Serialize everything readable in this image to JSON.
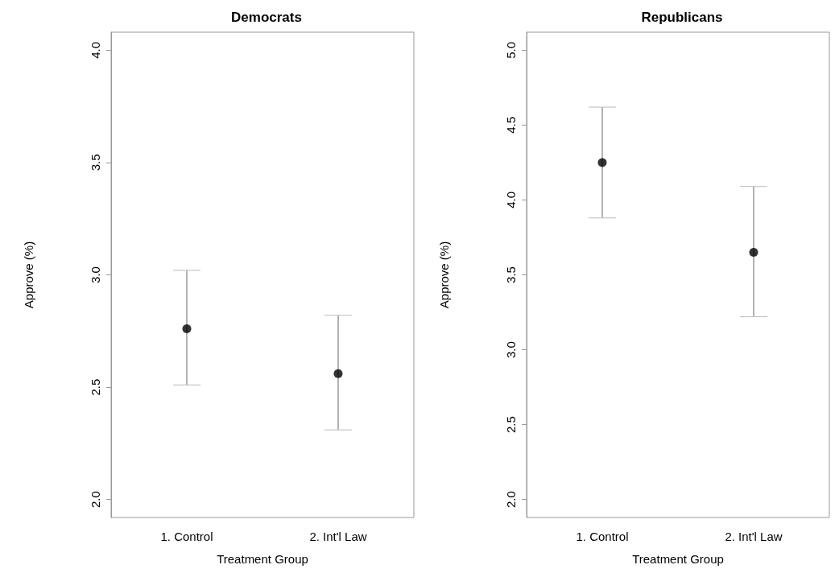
{
  "chart_data": [
    {
      "type": "scatter",
      "title": "Democrats",
      "xlabel": "Treatment Group",
      "ylabel": "Approve (%)",
      "categories": [
        "1. Control",
        "2. Int'l Law"
      ],
      "series": [
        {
          "color": "#000000",
          "values": [
            2.76,
            2.56
          ],
          "errors": [
            [
              2.51,
              3.02
            ],
            [
              2.31,
              2.82
            ]
          ]
        }
      ],
      "ylim": [
        1.92,
        4.08
      ],
      "yticks": [
        {
          "value": 2,
          "label": "2.0"
        },
        2.5,
        {
          "value": 3,
          "label": "3.0"
        },
        3.5,
        {
          "value": 4,
          "label": "4.0"
        }
      ],
      "grid": false,
      "marker": "circle"
    },
    {
      "type": "scatter",
      "title": "Republicans",
      "xlabel": "Treatment Group",
      "ylabel": "Approve (%)",
      "categories": [
        "1. Control",
        "2. Int'l Law"
      ],
      "series": [
        {
          "color": "#000000",
          "values": [
            4.25,
            3.65
          ],
          "errors": [
            [
              3.88,
              4.62
            ],
            [
              3.22,
              4.09
            ]
          ]
        }
      ],
      "ylim": [
        1.88,
        5.12
      ],
      "yticks": [
        {
          "value": 2,
          "label": "2.0"
        },
        2.5,
        {
          "value": 3,
          "label": "3.0"
        },
        3.5,
        {
          "value": 4,
          "label": "4.0"
        },
        4.5,
        {
          "value": 5,
          "label": "5.0"
        }
      ],
      "grid": false,
      "marker": "circle"
    }
  ]
}
